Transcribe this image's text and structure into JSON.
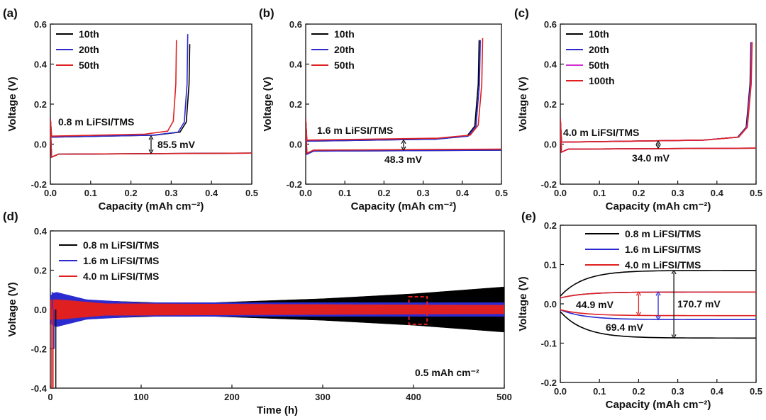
{
  "panel_labels": [
    "(a)",
    "(b)",
    "(c)",
    "(d)",
    "(e)"
  ],
  "chart_data": [
    {
      "type": "line",
      "panel": "(a)",
      "xlabel": "Capacity (mAh cm⁻²)",
      "ylabel": "Voltage (V)",
      "xlim": [
        0.0,
        0.5
      ],
      "ylim": [
        -0.2,
        0.6
      ],
      "xticks": [
        "0.0",
        "0.1",
        "0.2",
        "0.3",
        "0.4",
        "0.5"
      ],
      "yticks": [
        "-0.2",
        "0.0",
        "0.2",
        "0.4",
        "0.6"
      ],
      "legend": "top-left",
      "annotations": [
        "0.8 m LiFSI/TMS",
        "85.5 mV"
      ],
      "series": [
        {
          "name": "10th",
          "color": "#000000",
          "charge_end": 0.346,
          "charge_top": 0.5,
          "plateau_charge": 0.04,
          "plateau_discharge": -0.045
        },
        {
          "name": "20th",
          "color": "#2b2bd0",
          "charge_end": 0.341,
          "charge_top": 0.55,
          "plateau_charge": 0.04,
          "plateau_discharge": -0.045
        },
        {
          "name": "50th",
          "color": "#e02020",
          "charge_end": 0.313,
          "charge_top": 0.52,
          "plateau_charge": 0.045,
          "plateau_discharge": -0.045
        }
      ]
    },
    {
      "type": "line",
      "panel": "(b)",
      "xlabel": "Capacity (mAh cm⁻²)",
      "ylabel": "Voltage (V)",
      "xlim": [
        0.0,
        0.5
      ],
      "ylim": [
        -0.2,
        0.6
      ],
      "xticks": [
        "0.0",
        "0.1",
        "0.2",
        "0.3",
        "0.4",
        "0.5"
      ],
      "yticks": [
        "-0.2",
        "0.0",
        "0.2",
        "0.4",
        "0.6"
      ],
      "legend": "top-left",
      "annotations": [
        "1.6 m LiFSI/TMS",
        "48.3 mV"
      ],
      "series": [
        {
          "name": "10th",
          "color": "#000000",
          "charge_end": 0.443,
          "charge_top": 0.52,
          "plateau_charge": 0.02,
          "plateau_discharge": -0.03
        },
        {
          "name": "20th",
          "color": "#2b2bd0",
          "charge_end": 0.446,
          "charge_top": 0.52,
          "plateau_charge": 0.02,
          "plateau_discharge": -0.03
        },
        {
          "name": "50th",
          "color": "#e02020",
          "charge_end": 0.452,
          "charge_top": 0.53,
          "plateau_charge": 0.025,
          "plateau_discharge": -0.025
        }
      ]
    },
    {
      "type": "line",
      "panel": "(c)",
      "xlabel": "Capacity (mAh cm⁻²)",
      "ylabel": "Voltage (V)",
      "xlim": [
        0.0,
        0.5
      ],
      "ylim": [
        -0.2,
        0.6
      ],
      "xticks": [
        "0.0",
        "0.1",
        "0.2",
        "0.3",
        "0.4",
        "0.5"
      ],
      "yticks": [
        "-0.2",
        "0.0",
        "0.2",
        "0.4",
        "0.6"
      ],
      "legend": "top-left",
      "annotations": [
        "4.0 m LiFSI/TMS",
        "34.0 mV"
      ],
      "series": [
        {
          "name": "10th",
          "color": "#000000",
          "charge_end": 0.487,
          "charge_top": 0.51,
          "plateau_charge": 0.015,
          "plateau_discharge": -0.02
        },
        {
          "name": "20th",
          "color": "#2b2bd0",
          "charge_end": 0.488,
          "charge_top": 0.51,
          "plateau_charge": 0.015,
          "plateau_discharge": -0.02
        },
        {
          "name": "50th",
          "color": "#d030d0",
          "charge_end": 0.489,
          "charge_top": 0.51,
          "plateau_charge": 0.015,
          "plateau_discharge": -0.02
        },
        {
          "name": "100th",
          "color": "#e02020",
          "charge_end": 0.49,
          "charge_top": 0.51,
          "plateau_charge": 0.015,
          "plateau_discharge": -0.02
        }
      ]
    },
    {
      "type": "area",
      "panel": "(d)",
      "xlabel": "Time (h)",
      "ylabel": "Voltage (V)",
      "xlim": [
        0,
        500
      ],
      "ylim": [
        -0.4,
        0.4
      ],
      "xticks": [
        "0",
        "100",
        "200",
        "300",
        "400",
        "500"
      ],
      "yticks": [
        "-0.4",
        "-0.2",
        "0.0",
        "0.2",
        "0.4"
      ],
      "legend": "top-left",
      "annotations": [
        "0.5 mAh cm⁻²"
      ],
      "highlight_box_x": [
        395,
        415
      ],
      "highlight_box_y": [
        -0.075,
        0.065
      ],
      "series": [
        {
          "name": "0.8 m LiFSI/TMS",
          "color": "#000000",
          "amplitude_x": [
            0,
            5,
            50,
            150,
            300,
            400,
            500
          ],
          "amplitude_y": [
            0.06,
            0.06,
            0.045,
            0.03,
            0.055,
            0.08,
            0.115
          ]
        },
        {
          "name": "1.6 m LiFSI/TMS",
          "color": "#2b2bd0",
          "amplitude_x": [
            0,
            5,
            40,
            100,
            500
          ],
          "amplitude_y": [
            0.07,
            0.09,
            0.05,
            0.035,
            0.035
          ]
        },
        {
          "name": "4.0 m LiFSI/TMS",
          "color": "#e02020",
          "amplitude_x": [
            0,
            10,
            60,
            500
          ],
          "amplitude_y": [
            0.05,
            0.05,
            0.03,
            0.022
          ]
        }
      ]
    },
    {
      "type": "line",
      "panel": "(e)",
      "xlabel": "Capacity (mAh cm⁻²)",
      "ylabel": "Voltage (V)",
      "xlim": [
        0.0,
        0.5
      ],
      "ylim": [
        -0.2,
        0.2
      ],
      "xticks": [
        "0.0",
        "0.1",
        "0.2",
        "0.3",
        "0.4",
        "0.5"
      ],
      "yticks": [
        "-0.2",
        "-0.1",
        "0.0",
        "0.1",
        "0.2"
      ],
      "legend": "top-right",
      "annotations": [
        {
          "text": "44.9 mV",
          "color": "#e02020"
        },
        {
          "text": "69.4 mV",
          "color": "#2b2bd0"
        },
        {
          "text": "170.7 mV",
          "color": "#111111"
        }
      ],
      "series": [
        {
          "name": "0.8 m LiFSI/TMS",
          "color": "#000000",
          "top_start": 0.02,
          "top_end": 0.085,
          "bottom_start": -0.02,
          "bottom_end": -0.087
        },
        {
          "name": "1.6 m LiFSI/TMS",
          "color": "#2b2bd0",
          "top_start": 0.015,
          "top_end": 0.03,
          "bottom_start": -0.015,
          "bottom_end": -0.04
        },
        {
          "name": "4.0 m LiFSI/TMS",
          "color": "#e02020",
          "top_start": 0.015,
          "top_end": 0.03,
          "bottom_start": -0.015,
          "bottom_end": -0.03
        }
      ]
    }
  ]
}
